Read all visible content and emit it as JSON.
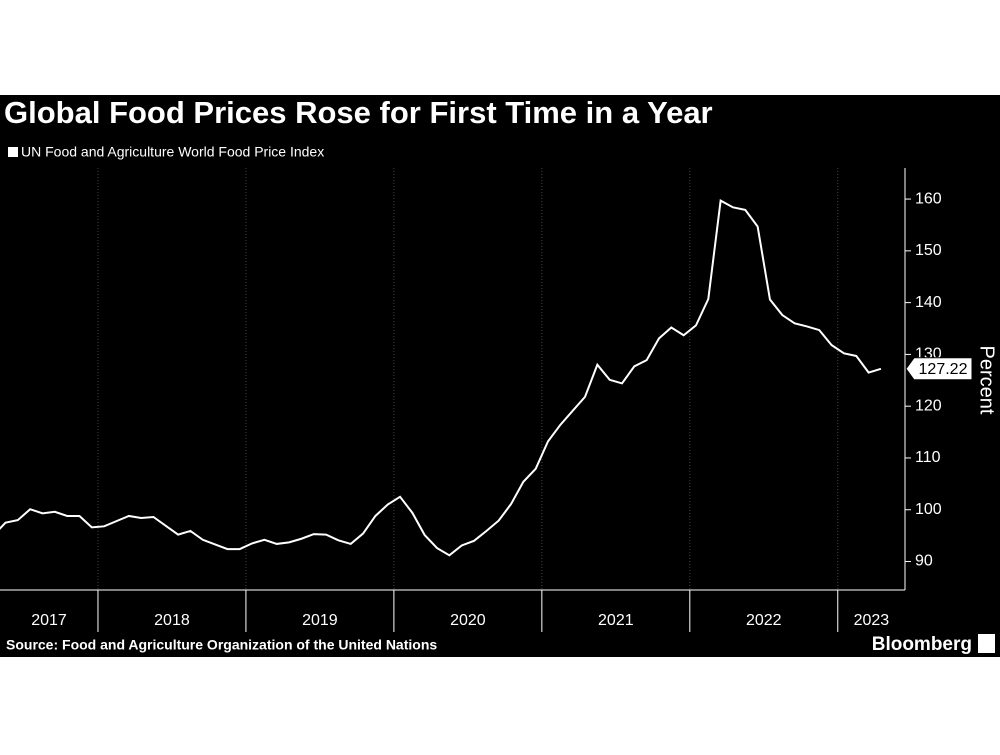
{
  "chart_data": {
    "type": "line",
    "title": "Global Food Prices Rose for First Time in a Year",
    "y_axis_label": "Percent",
    "source": "Source: Food and Agriculture Organization of the United Nations",
    "brand": "Bloomberg",
    "categories": [
      "2017",
      null,
      null,
      null,
      null,
      null,
      null,
      null,
      null,
      "2018",
      null,
      null,
      null,
      null,
      null,
      null,
      null,
      null,
      null,
      null,
      null,
      "2019",
      null,
      null,
      null,
      null,
      null,
      null,
      null,
      null,
      null,
      null,
      null,
      "2020",
      null,
      null,
      null,
      null,
      null,
      null,
      null,
      null,
      null,
      null,
      null,
      "2021",
      null,
      null,
      null,
      null,
      null,
      null,
      null,
      null,
      null,
      null,
      null,
      "2022",
      null,
      null,
      null,
      null,
      null,
      null,
      null,
      null,
      null,
      null,
      null,
      "2023",
      null,
      null,
      null
    ],
    "series": [
      {
        "name": "UN Food and Agriculture World Food Price Index",
        "color": "#ffffff",
        "values": [
          95.0,
          97.5,
          98.0,
          100.1,
          99.3,
          99.6,
          98.8,
          98.8,
          96.6,
          96.8,
          97.8,
          98.8,
          98.4,
          98.6,
          96.9,
          95.2,
          95.9,
          94.2,
          93.3,
          92.4,
          92.4,
          93.5,
          94.2,
          93.4,
          93.7,
          94.4,
          95.3,
          95.2,
          94.1,
          93.4,
          95.4,
          98.8,
          101.0,
          102.5,
          99.4,
          95.1,
          92.6,
          91.2,
          93.1,
          94.0,
          95.9,
          97.9,
          101.1,
          105.4,
          107.9,
          113.2,
          116.4,
          119.1,
          121.8,
          128.0,
          125.1,
          124.4,
          127.7,
          128.9,
          133.1,
          135.2,
          133.7,
          135.6,
          140.7,
          159.7,
          158.4,
          157.9,
          154.7,
          140.6,
          137.6,
          136.0,
          135.4,
          134.7,
          131.8,
          130.2,
          129.7,
          126.5,
          127.22
        ]
      }
    ],
    "ylim": [
      84.5,
      166
    ],
    "yticks": [
      90,
      100,
      110,
      120,
      130,
      140,
      150,
      160
    ]
  }
}
